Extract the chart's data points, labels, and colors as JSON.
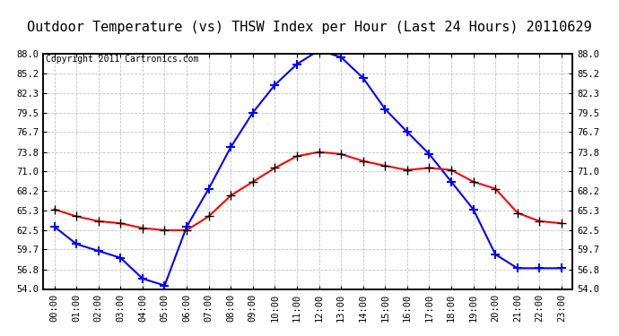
{
  "title": "Outdoor Temperature (vs) THSW Index per Hour (Last 24 Hours) 20110629",
  "copyright": "Copyright 2011 Cartronics.com",
  "hours": [
    "00:00",
    "01:00",
    "02:00",
    "03:00",
    "04:00",
    "05:00",
    "06:00",
    "07:00",
    "08:00",
    "09:00",
    "10:00",
    "11:00",
    "12:00",
    "13:00",
    "14:00",
    "15:00",
    "16:00",
    "17:00",
    "18:00",
    "19:00",
    "20:00",
    "21:00",
    "22:00",
    "23:00"
  ],
  "thsw": [
    63.0,
    60.5,
    59.5,
    58.5,
    55.5,
    54.5,
    63.0,
    68.5,
    74.5,
    79.5,
    83.5,
    86.5,
    88.5,
    87.5,
    84.5,
    80.0,
    76.7,
    73.5,
    69.5,
    65.5,
    59.0,
    57.0,
    57.0,
    57.0
  ],
  "temp": [
    65.5,
    64.5,
    63.8,
    63.5,
    62.8,
    62.5,
    62.5,
    64.5,
    67.5,
    69.5,
    71.5,
    73.2,
    73.8,
    73.5,
    72.5,
    71.8,
    71.2,
    71.5,
    71.2,
    69.5,
    68.5,
    65.0,
    63.8,
    63.5
  ],
  "thsw_color": "blue",
  "temp_color": "red",
  "ylim": [
    54.0,
    88.0
  ],
  "yticks": [
    54.0,
    56.8,
    59.7,
    62.5,
    65.3,
    68.2,
    71.0,
    73.8,
    76.7,
    79.5,
    82.3,
    85.2,
    88.0
  ],
  "yticklabels": [
    "54.0",
    "56.8",
    "59.7",
    "62.5",
    "65.3",
    "68.2",
    "71.0",
    "73.8",
    "76.7",
    "79.5",
    "82.3",
    "85.2",
    "88.0"
  ],
  "bg_color": "#ffffff",
  "plot_bg": "#ffffff",
  "grid_color": "#bbbbbb",
  "title_fontsize": 11,
  "copyright_fontsize": 7,
  "tick_fontsize": 7.5,
  "title_bg": "#dddddd",
  "border_color": "#000000"
}
